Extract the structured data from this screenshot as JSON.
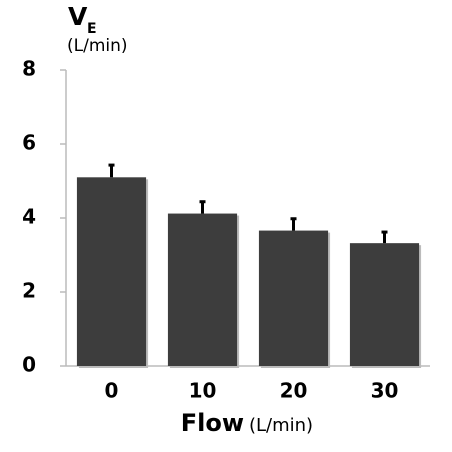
{
  "chart_data": {
    "type": "bar",
    "y_label": "V",
    "y_label_subscript": "E",
    "y_unit": "(L/min)",
    "x_label": "Flow",
    "x_unit": "(L/min)",
    "categories": [
      "0",
      "10",
      "20",
      "30"
    ],
    "values": [
      5.1,
      4.12,
      3.66,
      3.32
    ],
    "errors": [
      0.33,
      0.32,
      0.32,
      0.3
    ],
    "color": "#3d3d3d",
    "ylim": [
      0,
      8
    ],
    "yticks": [
      0,
      2,
      4,
      6,
      8
    ],
    "grid": false
  }
}
